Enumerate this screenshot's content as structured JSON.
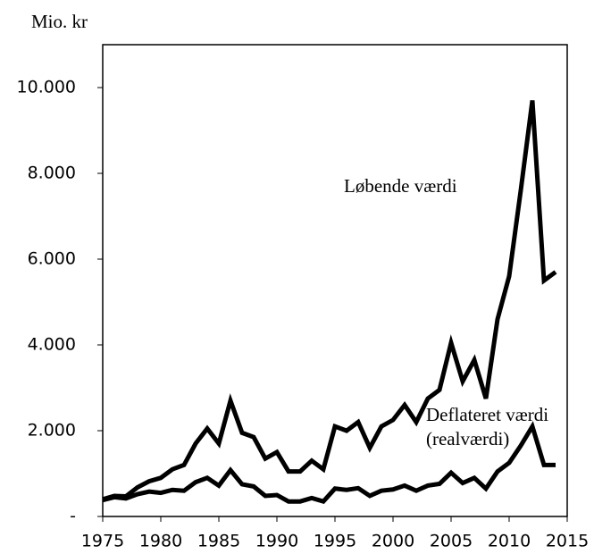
{
  "chart_data": {
    "type": "line",
    "y_label": "Mio. kr",
    "annotations": [
      "Løbende værdi",
      "Deflateret værdi",
      "(realværdi)"
    ],
    "x": [
      1975,
      1976,
      1977,
      1978,
      1979,
      1980,
      1981,
      1982,
      1983,
      1984,
      1985,
      1986,
      1987,
      1988,
      1989,
      1990,
      1991,
      1992,
      1993,
      1994,
      1995,
      1996,
      1997,
      1998,
      1999,
      2000,
      2001,
      2002,
      2003,
      2004,
      2005,
      2006,
      2007,
      2008,
      2009,
      2010,
      2011,
      2012,
      2013,
      2014
    ],
    "series": [
      {
        "color": "#000000",
        "values": [
          400,
          480,
          470,
          680,
          820,
          900,
          1100,
          1200,
          1700,
          2050,
          1700,
          2700,
          1950,
          1850,
          1350,
          1500,
          1050,
          1050,
          1300,
          1100,
          2100,
          2000,
          2200,
          1600,
          2100,
          2250,
          2600,
          2200,
          2750,
          2950,
          4050,
          3150,
          3650,
          2750,
          4600,
          5600,
          7600,
          9700,
          5500,
          5700
        ]
      },
      {
        "color": "#000000",
        "values": [
          380,
          450,
          420,
          520,
          580,
          550,
          620,
          600,
          800,
          900,
          720,
          1080,
          750,
          700,
          480,
          500,
          350,
          350,
          430,
          350,
          650,
          620,
          660,
          480,
          600,
          630,
          720,
          600,
          720,
          760,
          1020,
          780,
          900,
          650,
          1050,
          1250,
          1650,
          2100,
          1200,
          1200
        ]
      }
    ],
    "xlim": [
      1975,
      2015
    ],
    "xticks": [
      1975,
      1980,
      1985,
      1990,
      1995,
      2000,
      2005,
      2010,
      2015
    ],
    "ylim": [
      0,
      11000
    ],
    "yticks": [
      {
        "value": 0,
        "label": "-"
      },
      {
        "value": 2000,
        "label": "2.000"
      },
      {
        "value": 4000,
        "label": "4.000"
      },
      {
        "value": 6000,
        "label": "6.000"
      },
      {
        "value": 8000,
        "label": "8.000"
      },
      {
        "value": 10000,
        "label": "10.000"
      }
    ],
    "grid": false
  }
}
